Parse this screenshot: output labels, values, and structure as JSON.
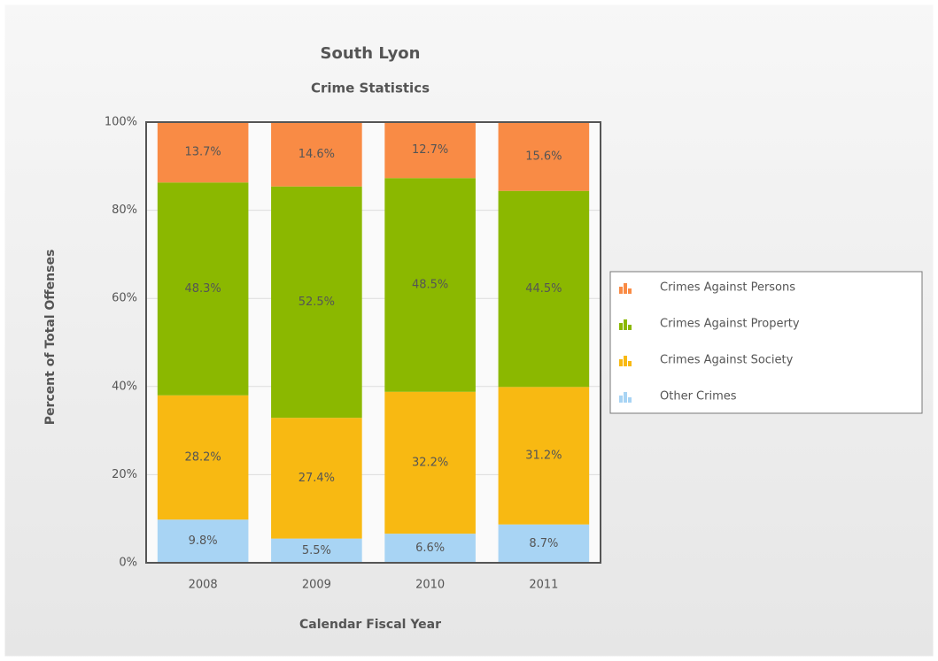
{
  "chart_data": {
    "type": "stacked_bar",
    "title": "South Lyon",
    "subtitle": "Crime Statistics",
    "x_label": "Calendar Fiscal Year",
    "y_label": "Percent of Total Offenses",
    "categories": [
      "2008",
      "2009",
      "2010",
      "2011"
    ],
    "series": [
      {
        "name": "Crimes Against Persons",
        "color": "#f98b45",
        "values": [
          13.7,
          14.6,
          12.7,
          15.6
        ],
        "value_labels": [
          "13.7%",
          "14.6%",
          "12.7%",
          "15.6%"
        ]
      },
      {
        "name": "Crimes Against Property",
        "color": "#8bb800",
        "values": [
          48.3,
          52.5,
          48.5,
          44.5
        ],
        "value_labels": [
          "48.3%",
          "52.5%",
          "48.5%",
          "44.5%"
        ]
      },
      {
        "name": "Crimes Against Society",
        "color": "#f8b912",
        "values": [
          28.2,
          27.4,
          32.2,
          31.2
        ],
        "value_labels": [
          "28.2%",
          "27.4%",
          "32.2%",
          "31.2%"
        ]
      },
      {
        "name": "Other Crimes",
        "color": "#a8d4f4",
        "values": [
          9.8,
          5.5,
          6.6,
          8.7
        ],
        "value_labels": [
          "9.8%",
          "5.5%",
          "6.6%",
          "8.7%"
        ]
      }
    ],
    "ylim": [
      0,
      100
    ],
    "yticks": [
      {
        "value": 0,
        "label": "0%"
      },
      {
        "value": 20,
        "label": "20%"
      },
      {
        "value": 40,
        "label": "40%"
      },
      {
        "value": 60,
        "label": "60%"
      },
      {
        "value": 80,
        "label": "80%"
      },
      {
        "value": 100,
        "label": "100%"
      }
    ],
    "grid": true,
    "legend": "right"
  }
}
